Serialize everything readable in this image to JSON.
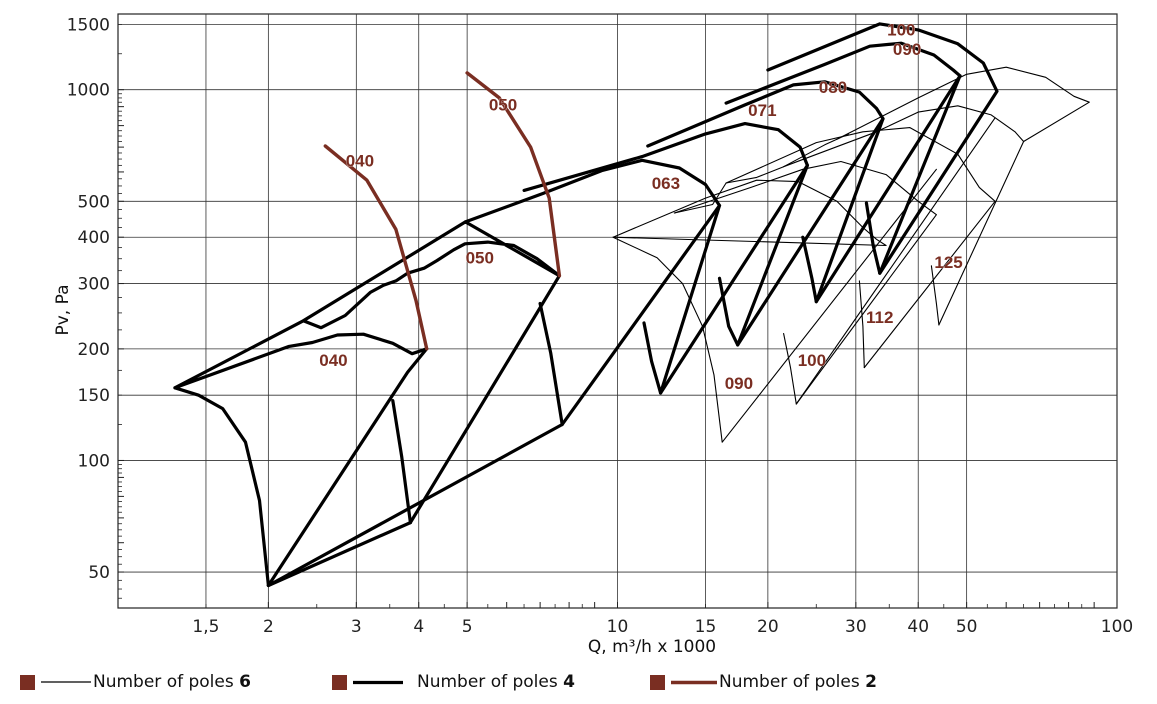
{
  "colors": {
    "brown": "#7a2e22",
    "black": "#000000",
    "grid": "#222222"
  },
  "chart_data": {
    "type": "line",
    "xscale": "log",
    "yscale": "log",
    "xlim": [
      1,
      100
    ],
    "ylim": [
      40,
      1600
    ],
    "grid": true,
    "xlabel": "Q, m³/h x 1000",
    "ylabel": "Pv, Pa",
    "xticks": [
      {
        "v": 1.5,
        "label": "1,5"
      },
      {
        "v": 2,
        "label": "2"
      },
      {
        "v": 3,
        "label": "3"
      },
      {
        "v": 4,
        "label": "4"
      },
      {
        "v": 5,
        "label": "5"
      },
      {
        "v": 10,
        "label": "10"
      },
      {
        "v": 15,
        "label": "15"
      },
      {
        "v": 20,
        "label": "20"
      },
      {
        "v": 30,
        "label": "30"
      },
      {
        "v": 40,
        "label": "40"
      },
      {
        "v": 50,
        "label": "50"
      },
      {
        "v": 100,
        "label": "100"
      }
    ],
    "yticks": [
      {
        "v": 50,
        "label": "50"
      },
      {
        "v": 100,
        "label": "100"
      },
      {
        "v": 150,
        "label": "150"
      },
      {
        "v": 200,
        "label": "200"
      },
      {
        "v": 300,
        "label": "300"
      },
      {
        "v": 400,
        "label": "400"
      },
      {
        "v": 500,
        "label": "500"
      },
      {
        "v": 1000,
        "label": "1000"
      },
      {
        "v": 1500,
        "label": "1500"
      }
    ],
    "legend": [
      {
        "style": "thin",
        "text": "Number of poles ",
        "value": "6"
      },
      {
        "style": "thick",
        "text": "Number of poles ",
        "value": "4"
      },
      {
        "style": "brown",
        "text": "Number of poles ",
        "value": "2"
      }
    ],
    "series": [
      {
        "size": "040",
        "poles": 2,
        "points": [
          [
            2.6,
            705
          ],
          [
            3.15,
            570
          ],
          [
            3.6,
            420
          ],
          [
            3.95,
            270
          ],
          [
            4.15,
            200
          ]
        ]
      },
      {
        "size": "050",
        "poles": 2,
        "points": [
          [
            5.0,
            1110
          ],
          [
            5.8,
            950
          ],
          [
            6.7,
            700
          ],
          [
            7.3,
            510
          ],
          [
            7.65,
            315
          ]
        ]
      },
      {
        "size": "040",
        "poles": 4,
        "points": [
          [
            1.3,
            157
          ],
          [
            1.45,
            150
          ],
          [
            1.62,
            138
          ],
          [
            1.8,
            112
          ],
          [
            1.92,
            78
          ],
          [
            2.0,
            46
          ],
          [
            3.8,
            173
          ],
          [
            4.15,
            200
          ],
          [
            3.88,
            194
          ],
          [
            3.55,
            207
          ],
          [
            3.1,
            219
          ],
          [
            2.75,
            218
          ],
          [
            2.45,
            208
          ],
          [
            2.2,
            203
          ],
          [
            1.3,
            157
          ],
          [
            2.35,
            238
          ],
          [
            4.96,
            440
          ],
          [
            7.65,
            315
          ],
          [
            6.9,
            350
          ],
          [
            6.2,
            380
          ],
          [
            5.5,
            388
          ],
          [
            4.95,
            384
          ],
          [
            4.7,
            370
          ],
          [
            4.35,
            346
          ],
          [
            4.1,
            330
          ],
          [
            3.8,
            320
          ],
          [
            3.6,
            305
          ],
          [
            3.4,
            297
          ],
          [
            3.2,
            284
          ],
          [
            2.85,
            246
          ],
          [
            2.55,
            228
          ],
          [
            2.35,
            238
          ]
        ]
      },
      {
        "size": "tail-040",
        "poles": 4,
        "points": [
          [
            3.55,
            145
          ],
          [
            3.7,
            102
          ],
          [
            3.85,
            68
          ]
        ]
      },
      {
        "size": "tail-050",
        "poles": 4,
        "points": [
          [
            7.0,
            265
          ],
          [
            7.35,
            195
          ],
          [
            7.75,
            125
          ],
          [
            2.0,
            46
          ]
        ]
      },
      {
        "size": "050",
        "poles": 4,
        "points": [
          [
            2.0,
            46
          ],
          [
            3.85,
            68
          ]
        ]
      },
      {
        "size": "063",
        "poles": 4,
        "points": [
          [
            3.85,
            68
          ],
          [
            7.65,
            315
          ]
        ]
      },
      {
        "size": "063-top",
        "poles": 4,
        "points": [
          [
            4.96,
            440
          ],
          [
            7.1,
            525
          ],
          [
            9.3,
            605
          ],
          [
            11.2,
            645
          ],
          [
            13.3,
            615
          ],
          [
            15.0,
            555
          ],
          [
            16.0,
            487
          ],
          [
            7.75,
            125
          ]
        ]
      },
      {
        "size": "063-tail",
        "poles": 4,
        "points": [
          [
            11.3,
            235
          ],
          [
            11.7,
            185
          ],
          [
            12.2,
            152
          ],
          [
            16.0,
            487
          ]
        ]
      },
      {
        "size": "071",
        "poles": 4,
        "points": [
          [
            6.5,
            535
          ],
          [
            11.2,
            660
          ],
          [
            15.0,
            760
          ],
          [
            18.0,
            810
          ],
          [
            21.0,
            780
          ],
          [
            23.2,
            700
          ],
          [
            24.0,
            625
          ],
          [
            12.2,
            152
          ]
        ]
      },
      {
        "size": "071-tail",
        "poles": 4,
        "points": [
          [
            16.0,
            310
          ],
          [
            16.7,
            230
          ],
          [
            17.4,
            205
          ],
          [
            24.0,
            625
          ]
        ]
      },
      {
        "size": "080",
        "poles": 4,
        "points": [
          [
            11.5,
            705
          ],
          [
            18.0,
            910
          ],
          [
            22.5,
            1030
          ],
          [
            26.0,
            1050
          ],
          [
            30.5,
            985
          ],
          [
            33.0,
            890
          ],
          [
            34.0,
            835
          ],
          [
            17.4,
            205
          ]
        ]
      },
      {
        "size": "080-tail",
        "poles": 4,
        "points": [
          [
            23.5,
            400
          ],
          [
            24.5,
            310
          ],
          [
            25.0,
            268
          ],
          [
            34.0,
            835
          ]
        ]
      },
      {
        "size": "090",
        "poles": 4,
        "points": [
          [
            16.5,
            920
          ],
          [
            26.0,
            1170
          ],
          [
            32.0,
            1310
          ],
          [
            37.0,
            1335
          ],
          [
            43.0,
            1240
          ],
          [
            47.0,
            1130
          ],
          [
            48.5,
            1090
          ],
          [
            25.0,
            268
          ]
        ]
      },
      {
        "size": "090-tail",
        "poles": 4,
        "points": [
          [
            31.5,
            495
          ],
          [
            32.5,
            380
          ],
          [
            33.5,
            320
          ],
          [
            48.5,
            1090
          ]
        ]
      },
      {
        "size": "100",
        "poles": 4,
        "points": [
          [
            20.0,
            1130
          ],
          [
            33.5,
            1505
          ],
          [
            40.0,
            1450
          ],
          [
            48.0,
            1330
          ],
          [
            54.0,
            1180
          ],
          [
            57.5,
            990
          ],
          [
            33.5,
            320
          ]
        ]
      },
      {
        "size": "tail-100-6",
        "poles": 6,
        "points": [
          [
            21.5,
            220
          ],
          [
            22.2,
            178
          ],
          [
            22.8,
            142
          ],
          [
            57.0,
            840
          ]
        ]
      },
      {
        "size": "090-6",
        "poles": 6,
        "points": [
          [
            9.8,
            400
          ],
          [
            12.0,
            352
          ],
          [
            13.5,
            300
          ],
          [
            14.8,
            230
          ],
          [
            15.6,
            170
          ],
          [
            16.2,
            112
          ],
          [
            43.5,
            610
          ]
        ]
      },
      {
        "size": "090-6-top",
        "poles": 6,
        "points": [
          [
            9.8,
            400
          ],
          [
            15.0,
            510
          ],
          [
            19.0,
            570
          ],
          [
            23.0,
            565
          ],
          [
            27.5,
            500
          ],
          [
            31.0,
            425
          ],
          [
            33.0,
            395
          ],
          [
            34.5,
            380
          ],
          [
            9.8,
            400
          ]
        ]
      },
      {
        "size": "100-6",
        "poles": 6,
        "points": [
          [
            13.0,
            465
          ],
          [
            18.5,
            545
          ],
          [
            23.5,
            610
          ],
          [
            28.0,
            640
          ],
          [
            34.5,
            590
          ],
          [
            40.0,
            500
          ],
          [
            43.5,
            460
          ],
          [
            22.8,
            142
          ]
        ]
      },
      {
        "size": "112-6",
        "poles": 6,
        "points": [
          [
            16.5,
            560
          ],
          [
            25.0,
            720
          ],
          [
            31.0,
            770
          ],
          [
            38.5,
            790
          ],
          [
            48.0,
            670
          ],
          [
            53.0,
            545
          ],
          [
            57.0,
            500
          ],
          [
            31.2,
            178
          ]
        ]
      },
      {
        "size": "112-6-tail",
        "poles": 6,
        "points": [
          [
            30.5,
            305
          ],
          [
            31.0,
            230
          ],
          [
            31.2,
            178
          ]
        ]
      },
      {
        "size": "125-6",
        "poles": 6,
        "points": [
          [
            21.5,
            620
          ],
          [
            33.0,
            770
          ],
          [
            40.0,
            870
          ],
          [
            48.0,
            905
          ],
          [
            56.0,
            855
          ],
          [
            62.5,
            770
          ],
          [
            65.0,
            725
          ],
          [
            44.0,
            232
          ]
        ]
      },
      {
        "size": "125-6-tail",
        "poles": 6,
        "points": [
          [
            42.5,
            335
          ],
          [
            43.5,
            265
          ],
          [
            44.0,
            232
          ]
        ]
      },
      {
        "size": "125-6-top",
        "poles": 6,
        "points": [
          [
            27.5,
            735
          ],
          [
            40.0,
            950
          ],
          [
            50.0,
            1100
          ],
          [
            60.0,
            1150
          ],
          [
            72.0,
            1080
          ],
          [
            82.0,
            960
          ],
          [
            88.0,
            925
          ],
          [
            65.0,
            725
          ]
        ]
      },
      {
        "size": "6-joins",
        "poles": 6,
        "points": [
          [
            13.0,
            465
          ],
          [
            15.5,
            490
          ],
          [
            16.5,
            560
          ],
          [
            19.0,
            580
          ],
          [
            21.5,
            620
          ],
          [
            26.0,
            710
          ],
          [
            27.5,
            735
          ],
          [
            29.0,
            760
          ]
        ]
      }
    ],
    "labels": [
      {
        "text": "040",
        "x": 3.05,
        "y": 620
      },
      {
        "text": "050",
        "x": 5.9,
        "y": 880
      },
      {
        "text": "040",
        "x": 2.7,
        "y": 180
      },
      {
        "text": "050",
        "x": 5.3,
        "y": 340
      },
      {
        "text": "063",
        "x": 12.5,
        "y": 540
      },
      {
        "text": "071",
        "x": 19.5,
        "y": 850
      },
      {
        "text": "080",
        "x": 27.0,
        "y": 980
      },
      {
        "text": "090",
        "x": 38.0,
        "y": 1240
      },
      {
        "text": "100",
        "x": 37.0,
        "y": 1400
      },
      {
        "text": "090",
        "x": 17.5,
        "y": 156
      },
      {
        "text": "100",
        "x": 24.5,
        "y": 180
      },
      {
        "text": "112",
        "x": 33.5,
        "y": 235
      },
      {
        "text": "125",
        "x": 46.0,
        "y": 330
      }
    ]
  }
}
